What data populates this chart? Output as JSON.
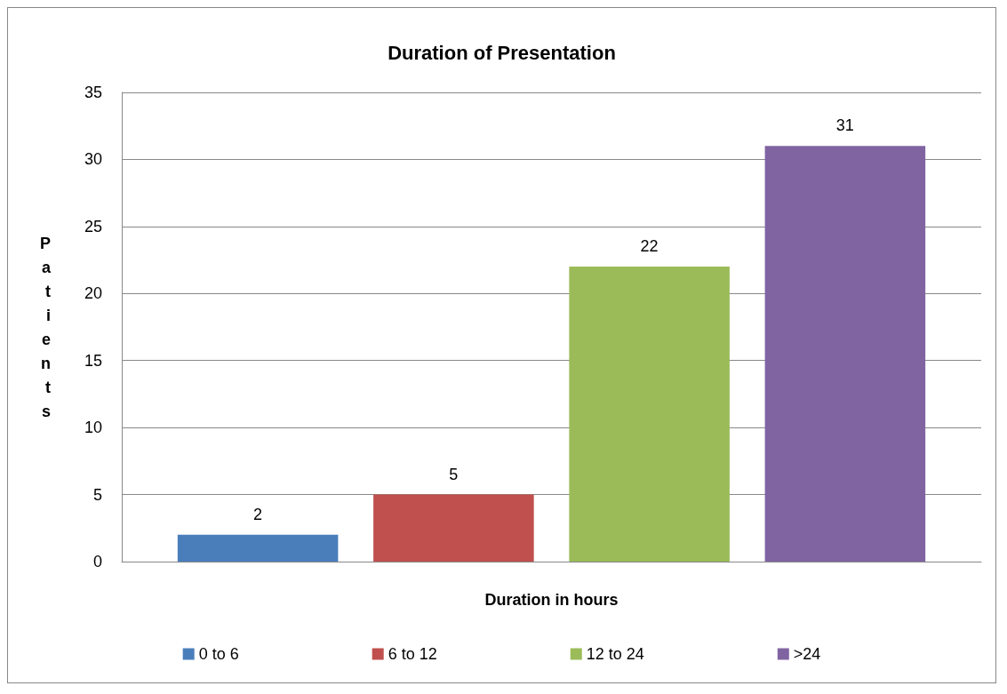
{
  "chart_data": {
    "type": "bar",
    "title": "Duration of Presentation",
    "xlabel": "Duration in hours",
    "ylabel": "Patients",
    "categories": [
      null
    ],
    "series": [
      {
        "name": "0 to 6",
        "color": "#4a7ebb",
        "values": [
          2
        ]
      },
      {
        "name": "6 to 12",
        "color": "#c0504d",
        "values": [
          5
        ]
      },
      {
        "name": "12 to 24",
        "color": "#9bbb59",
        "values": [
          22
        ]
      },
      {
        "name": ">24",
        "color": "#8064a2",
        "values": [
          31
        ]
      }
    ],
    "ylim": [
      0,
      35
    ],
    "yticks": [
      0,
      5,
      10,
      15,
      20,
      25,
      30,
      35
    ],
    "grid": "y",
    "legend": "bottom",
    "data_labels": true
  }
}
